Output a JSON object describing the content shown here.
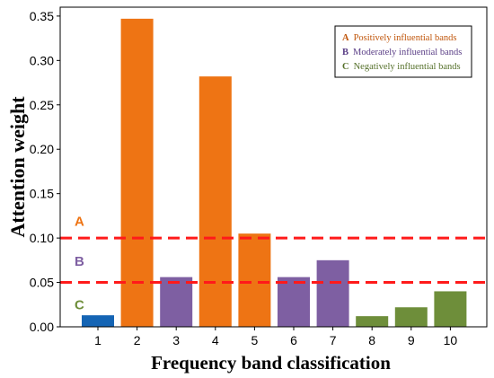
{
  "chart_data": {
    "type": "bar",
    "categories": [
      "1",
      "2",
      "3",
      "4",
      "5",
      "6",
      "7",
      "8",
      "9",
      "10"
    ],
    "values": [
      0.013,
      0.347,
      0.056,
      0.282,
      0.105,
      0.056,
      0.075,
      0.012,
      0.022,
      0.04
    ],
    "bar_colors": [
      "#1464b4",
      "#ee7414",
      "#7e5fa2",
      "#ee7414",
      "#ee7414",
      "#7e5fa2",
      "#7e5fa2",
      "#6e8e3a",
      "#6e8e3a",
      "#6e8e3a"
    ],
    "xlabel": "Frequency band classification",
    "ylabel": "Attention weight",
    "ylim": [
      0,
      0.36
    ],
    "yticks": [
      0.0,
      0.05,
      0.1,
      0.15,
      0.2,
      0.25,
      0.3,
      0.35
    ],
    "ytick_labels": [
      "0.00",
      "0.05",
      "0.10",
      "0.15",
      "0.20",
      "0.25",
      "0.30",
      "0.35"
    ],
    "reference_lines": [
      {
        "y": 0.1,
        "color": "#ff1a1a",
        "style": "dashed"
      },
      {
        "y": 0.05,
        "color": "#ff1a1a",
        "style": "dashed"
      }
    ],
    "zone_labels": [
      {
        "text": "A",
        "y": 0.12,
        "color": "#ee7414"
      },
      {
        "text": "B",
        "y": 0.075,
        "color": "#7e5fa2"
      },
      {
        "text": "C",
        "y": 0.026,
        "color": "#6e8e3a"
      }
    ],
    "legend": {
      "position": "top-right",
      "entries": [
        {
          "key": "A",
          "label": "Positively influential bands",
          "color": "#c0550a"
        },
        {
          "key": "B",
          "label": "Moderately influential bands",
          "color": "#5a3e86"
        },
        {
          "key": "C",
          "label": "Negatively influential bands",
          "color": "#55702a"
        }
      ]
    },
    "grid": false
  }
}
